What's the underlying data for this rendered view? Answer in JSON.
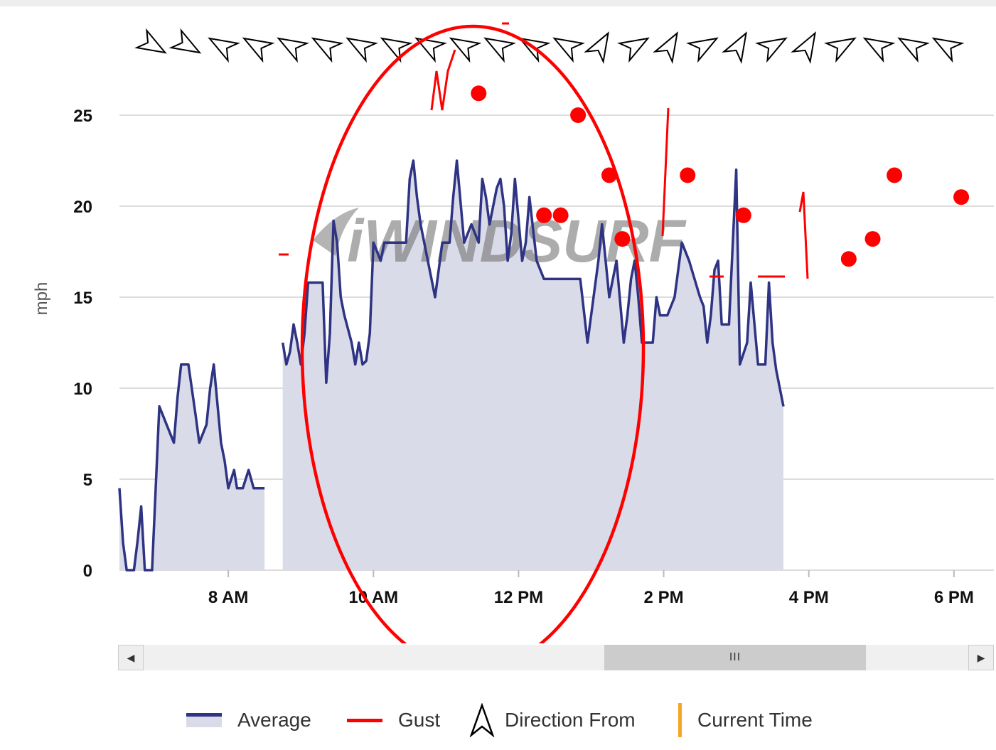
{
  "chart_data": {
    "type": "area",
    "ylabel": "mph",
    "ylim": [
      0,
      25
    ],
    "yticks": [
      0,
      5,
      10,
      15,
      20,
      25
    ],
    "xlim": [
      6.5,
      18.55
    ],
    "xticks": [
      {
        "value": 8,
        "label": "8 AM"
      },
      {
        "value": 10,
        "label": "10 AM"
      },
      {
        "value": 12,
        "label": "12 PM"
      },
      {
        "value": 14,
        "label": "2 PM"
      },
      {
        "value": 16,
        "label": "4 PM"
      },
      {
        "value": 18,
        "label": "6 PM"
      }
    ],
    "series": [
      {
        "name": "Average",
        "color": "#2e3383",
        "fill": "#dadbe8",
        "segments": [
          [
            [
              6.5,
              4.5
            ],
            [
              6.55,
              1.5
            ],
            [
              6.6,
              0
            ],
            [
              6.65,
              0
            ],
            [
              6.7,
              0
            ],
            [
              6.75,
              1.6
            ],
            [
              6.8,
              3.5
            ],
            [
              6.85,
              0
            ],
            [
              6.9,
              0
            ],
            [
              6.95,
              0
            ],
            [
              7.0,
              4.5
            ],
            [
              7.05,
              9.0
            ],
            [
              7.1,
              8.5
            ],
            [
              7.15,
              8.0
            ],
            [
              7.25,
              7.0
            ],
            [
              7.3,
              9.5
            ],
            [
              7.35,
              11.3
            ],
            [
              7.45,
              11.3
            ],
            [
              7.55,
              8.5
            ],
            [
              7.6,
              7.0
            ],
            [
              7.7,
              8.0
            ],
            [
              7.75,
              10.0
            ],
            [
              7.8,
              11.3
            ],
            [
              7.9,
              7.0
            ],
            [
              7.95,
              6.0
            ],
            [
              8.0,
              4.5
            ],
            [
              8.08,
              5.5
            ],
            [
              8.12,
              4.5
            ],
            [
              8.2,
              4.5
            ],
            [
              8.28,
              5.5
            ],
            [
              8.35,
              4.5
            ],
            [
              8.5,
              4.5
            ]
          ],
          [
            [
              8.75,
              12.5
            ],
            [
              8.8,
              11.3
            ],
            [
              8.85,
              12.0
            ],
            [
              8.9,
              13.5
            ],
            [
              8.95,
              12.5
            ],
            [
              9.0,
              11.3
            ],
            [
              9.05,
              13.0
            ],
            [
              9.1,
              15.8
            ],
            [
              9.3,
              15.8
            ],
            [
              9.35,
              10.3
            ],
            [
              9.4,
              13.0
            ],
            [
              9.45,
              19.2
            ],
            [
              9.5,
              18.0
            ],
            [
              9.55,
              15.0
            ],
            [
              9.6,
              14.0
            ],
            [
              9.7,
              12.5
            ],
            [
              9.75,
              11.3
            ],
            [
              9.8,
              12.5
            ],
            [
              9.85,
              11.3
            ],
            [
              9.9,
              11.5
            ],
            [
              9.95,
              13.0
            ],
            [
              10.0,
              18.0
            ],
            [
              10.05,
              17.5
            ],
            [
              10.1,
              17.0
            ],
            [
              10.15,
              18.0
            ],
            [
              10.45,
              18.0
            ],
            [
              10.5,
              21.5
            ],
            [
              10.55,
              22.5
            ],
            [
              10.6,
              20.5
            ],
            [
              10.65,
              19.0
            ],
            [
              10.7,
              18.0
            ],
            [
              10.8,
              16.0
            ],
            [
              10.85,
              15.0
            ],
            [
              10.95,
              18.0
            ],
            [
              11.05,
              18.0
            ],
            [
              11.1,
              20.5
            ],
            [
              11.15,
              22.5
            ],
            [
              11.25,
              18.0
            ],
            [
              11.3,
              18.5
            ],
            [
              11.35,
              19.0
            ],
            [
              11.45,
              18.0
            ],
            [
              11.5,
              21.5
            ],
            [
              11.55,
              20.5
            ],
            [
              11.6,
              19.0
            ],
            [
              11.7,
              21.0
            ],
            [
              11.75,
              21.5
            ],
            [
              11.8,
              20.0
            ],
            [
              11.85,
              17.0
            ],
            [
              11.9,
              18.5
            ],
            [
              11.95,
              21.5
            ],
            [
              12.05,
              17.0
            ],
            [
              12.1,
              18.0
            ],
            [
              12.15,
              20.5
            ],
            [
              12.25,
              17.0
            ],
            [
              12.35,
              16.0
            ],
            [
              12.85,
              16.0
            ],
            [
              12.95,
              12.5
            ],
            [
              13.0,
              14.0
            ],
            [
              13.05,
              15.5
            ],
            [
              13.1,
              17.0
            ],
            [
              13.15,
              19.0
            ],
            [
              13.25,
              15.0
            ],
            [
              13.35,
              17.0
            ],
            [
              13.45,
              12.5
            ],
            [
              13.5,
              14.0
            ],
            [
              13.55,
              16.0
            ],
            [
              13.6,
              17.0
            ],
            [
              13.65,
              15.0
            ],
            [
              13.7,
              12.5
            ],
            [
              13.85,
              12.5
            ],
            [
              13.9,
              15.0
            ],
            [
              13.95,
              14.0
            ],
            [
              14.05,
              14.0
            ],
            [
              14.15,
              15.0
            ],
            [
              14.25,
              18.0
            ],
            [
              14.35,
              17.0
            ],
            [
              14.5,
              15.0
            ],
            [
              14.55,
              14.5
            ],
            [
              14.6,
              12.5
            ],
            [
              14.65,
              14.0
            ],
            [
              14.7,
              16.5
            ],
            [
              14.75,
              17.0
            ],
            [
              14.8,
              13.5
            ],
            [
              14.9,
              13.5
            ],
            [
              15.0,
              22.0
            ],
            [
              15.05,
              11.3
            ],
            [
              15.15,
              12.5
            ],
            [
              15.2,
              15.8
            ],
            [
              15.3,
              11.3
            ],
            [
              15.4,
              11.3
            ],
            [
              15.45,
              15.8
            ],
            [
              15.5,
              12.5
            ],
            [
              15.55,
              11.0
            ],
            [
              15.65,
              9.0
            ]
          ]
        ]
      },
      {
        "name": "Gust",
        "color": "#ff0000",
        "dots": [
          [
            11.45,
            26.2
          ],
          [
            12.35,
            19.5
          ],
          [
            12.58,
            19.5
          ],
          [
            12.82,
            25.0
          ],
          [
            13.25,
            21.7
          ],
          [
            13.43,
            18.2
          ],
          [
            14.33,
            21.7
          ],
          [
            15.1,
            19.5
          ],
          [
            16.55,
            17.1
          ],
          [
            16.88,
            18.2
          ],
          [
            17.18,
            21.7
          ],
          [
            18.1,
            20.5
          ]
        ]
      }
    ],
    "legend": {
      "placement": "bottom",
      "entries": [
        "Average",
        "Gust",
        "Direction From",
        "Current Time"
      ]
    },
    "watermark": "iWINDSURF",
    "annotation": "red ellipse drawn around 10 AM – 1:30 PM"
  },
  "scrollbar": {
    "left_icon": "left-arrow-icon",
    "right_icon": "right-arrow-icon",
    "thumb_grip": "III"
  }
}
